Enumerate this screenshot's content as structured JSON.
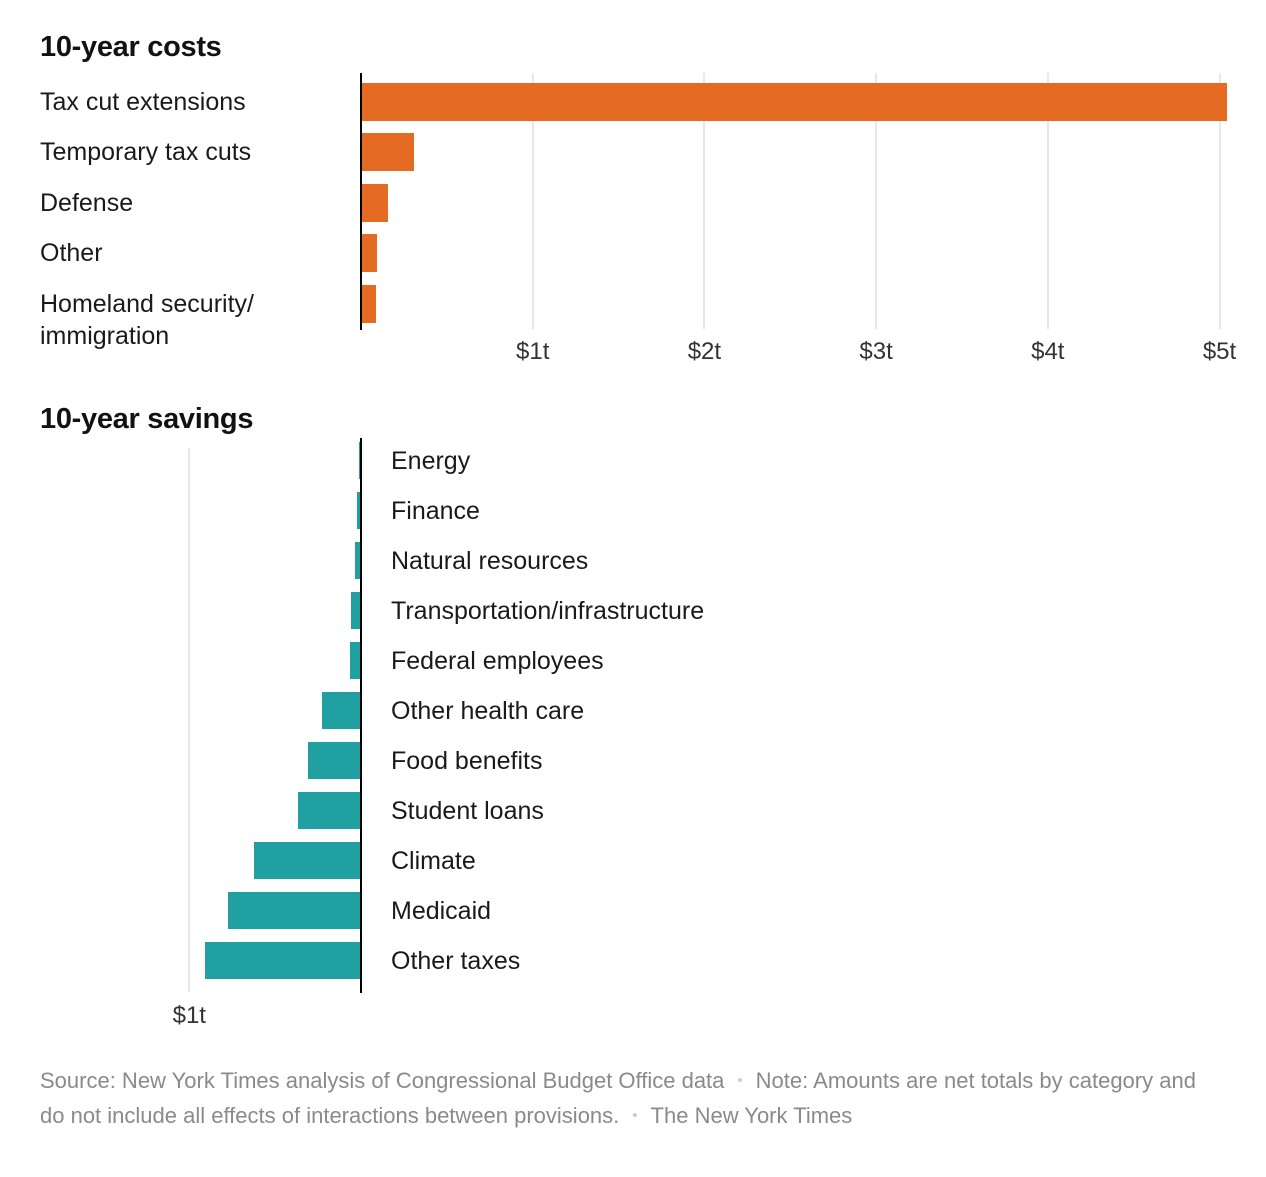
{
  "colors": {
    "costs_bar": "#e56b24",
    "savings_bar": "#20a0a0",
    "axis": "#000000",
    "gridline": "#e7e7e7",
    "text": "#1a1a1a",
    "footer_text": "#8a8a8a"
  },
  "chart_data": [
    {
      "type": "bar",
      "orientation": "horizontal",
      "direction": "right",
      "title": "10-year costs",
      "unit": "trillions of dollars",
      "categories": [
        "Tax cut extensions",
        "Temporary tax cuts",
        "Defense",
        "Other",
        "Homeland security/\nimmigration"
      ],
      "values": [
        5.04,
        0.3,
        0.15,
        0.09,
        0.08
      ],
      "bar_color": "#e56b24",
      "grid": true,
      "legend": "none",
      "axis": {
        "min": 0,
        "max": 5.27,
        "ticks": [
          {
            "label": "$1t",
            "value": 1
          },
          {
            "label": "$2t",
            "value": 2
          },
          {
            "label": "$3t",
            "value": 3
          },
          {
            "label": "$4t",
            "value": 4
          },
          {
            "label": "$5t",
            "value": 5
          }
        ]
      }
    },
    {
      "type": "bar",
      "orientation": "horizontal",
      "direction": "left",
      "title": "10-year savings",
      "unit": "trillions of dollars",
      "categories": [
        "Energy",
        "Finance",
        "Natural resources",
        "Transportation/infrastructure",
        "Federal employees",
        "Other health care",
        "Food benefits",
        "Student loans",
        "Climate",
        "Medicaid",
        "Other taxes"
      ],
      "values": [
        0.005,
        0.015,
        0.03,
        0.05,
        0.06,
        0.22,
        0.3,
        0.36,
        0.62,
        0.77,
        0.9
      ],
      "bar_color": "#20a0a0",
      "grid": true,
      "legend": "none",
      "axis": {
        "min": 0,
        "max": 1.15,
        "ticks": [
          {
            "label": "$1t",
            "value": 1
          }
        ]
      }
    }
  ],
  "footer": {
    "source": "Source: New York Times analysis of Congressional Budget Office data",
    "separator": "•",
    "note": "Note: Amounts are net totals by category and do not include all effects of interactions between provisions.",
    "credit": "The New York Times"
  }
}
